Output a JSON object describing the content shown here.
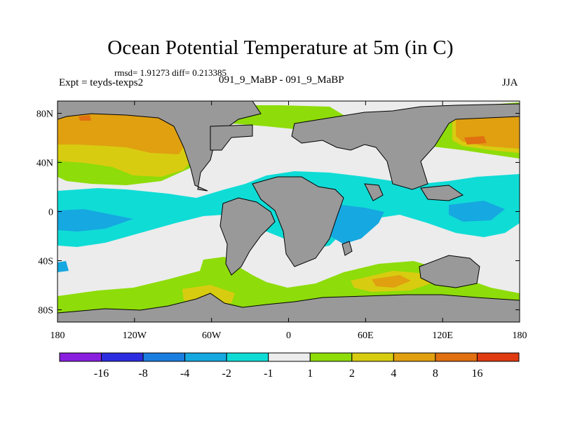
{
  "header": {
    "title": "Ocean Potential Temperature at 5m (in C)",
    "stats": "rmsd= 1.91273  diff= 0.213385",
    "experiment": "Expt = teyds-texps2",
    "comparison": "091_9_MaBP - 091_9_MaBP",
    "season": "JJA"
  },
  "chart_data": {
    "type": "heatmap",
    "title": "Ocean Potential Temperature at 5m (in C)",
    "variable": "Ocean potential temperature difference at 5m",
    "units": "C",
    "x_ticks": [
      "180",
      "120W",
      "60W",
      "0",
      "60E",
      "120E",
      "180"
    ],
    "y_ticks": [
      "80N",
      "40N",
      "0",
      "40S",
      "80S"
    ],
    "xlim": [
      -180,
      180
    ],
    "ylim": [
      -90,
      90
    ],
    "land_color": "#999999",
    "colorbar": {
      "levels": [
        "-16",
        "-8",
        "-4",
        "-2",
        "-1",
        "1",
        "2",
        "4",
        "8",
        "16"
      ],
      "colors": [
        "#8a1fe0",
        "#2c2ce0",
        "#1a7ee0",
        "#16a8e0",
        "#10dcd6",
        "#ececec",
        "#8edc0a",
        "#d8cc10",
        "#e0a010",
        "#e07010",
        "#e03a10"
      ]
    }
  }
}
